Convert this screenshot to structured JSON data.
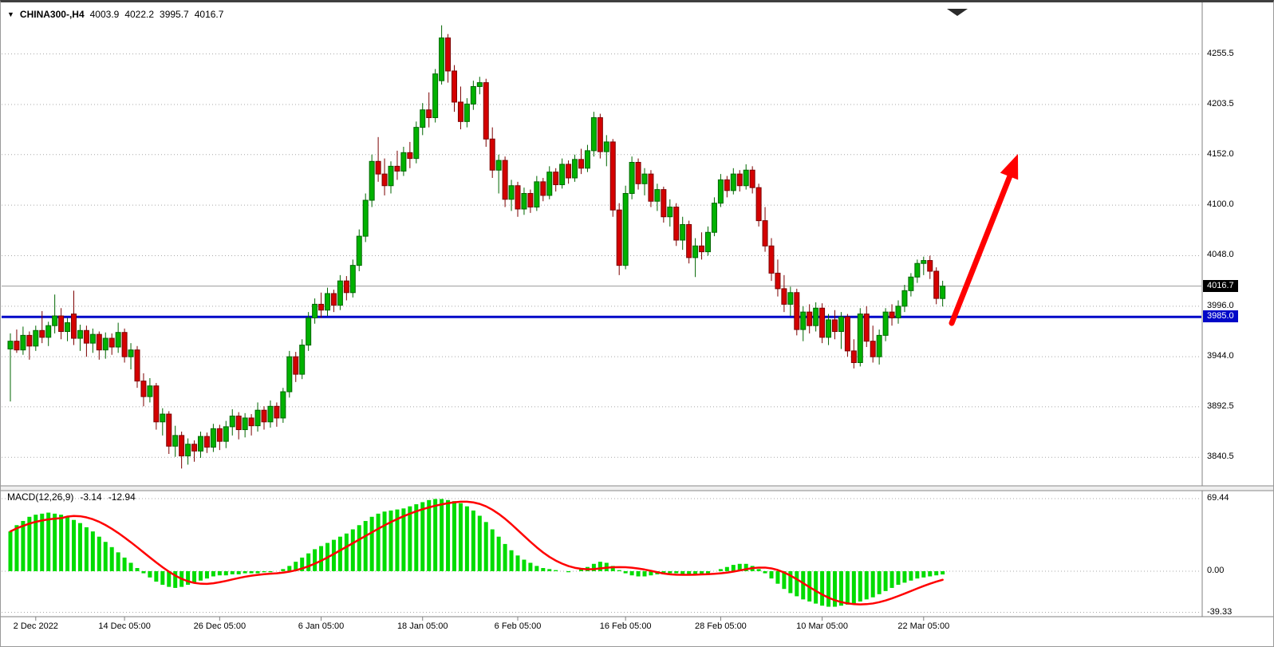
{
  "header": {
    "dropdown_icon": "▼",
    "symbol": "CHINA300-,H4",
    "open": "4003.9",
    "high": "4022.2",
    "low": "3995.7",
    "close": "4016.7"
  },
  "price_axis": {
    "current_price": "4016.7",
    "support_price": "3985.0"
  },
  "macd_panel": {
    "title": "MACD(12,26,9)",
    "main_value": "-3.14",
    "signal_value": "-12.94"
  },
  "colors": {
    "bull": "#00b200",
    "bull_border": "#006600",
    "bear": "#d40000",
    "bear_border": "#7c0000",
    "macd_hist": "#00dc00",
    "macd_signal": "#ff0000",
    "support_line": "#0008c8",
    "trend_arrow": "#ff0000",
    "grid": "#a8a8a8",
    "current_price_line": "#9a9a9a"
  },
  "chart_data": [
    {
      "type": "candlestick",
      "title": "CHINA300-,H4",
      "ylim": [
        3812,
        4302
      ],
      "y_ticks": [
        4255.5,
        4203.5,
        4152.0,
        4100.0,
        4048.0,
        3996.0,
        3944.0,
        3892.5,
        3840.5
      ],
      "last_price": 4016.7,
      "annotations": [
        {
          "type": "hline",
          "value": 3985.0,
          "color": "#0008c8"
        },
        {
          "type": "arrow",
          "direction": "up",
          "color": "#ff0000"
        }
      ],
      "x_tick_labels": [
        {
          "label": "2 Dec 2022",
          "index": 4
        },
        {
          "label": "14 Dec 05:00",
          "index": 18
        },
        {
          "label": "26 Dec 05:00",
          "index": 33
        },
        {
          "label": "6 Jan 05:00",
          "index": 49
        },
        {
          "label": "18 Jan 05:00",
          "index": 65
        },
        {
          "label": "6 Feb 05:00",
          "index": 80
        },
        {
          "label": "16 Feb 05:00",
          "index": 97
        },
        {
          "label": "28 Feb 05:00",
          "index": 112
        },
        {
          "label": "10 Mar 05:00",
          "index": 128
        },
        {
          "label": "22 Mar 05:00",
          "index": 144
        }
      ],
      "ohlc": [
        [
          3952,
          3968,
          3898,
          3960
        ],
        [
          3960,
          3972,
          3948,
          3951
        ],
        [
          3951,
          3975,
          3946,
          3966
        ],
        [
          3966,
          3970,
          3941,
          3955
        ],
        [
          3955,
          3976,
          3950,
          3971
        ],
        [
          3971,
          3991,
          3958,
          3964
        ],
        [
          3964,
          3980,
          3955,
          3976
        ],
        [
          3976,
          4008,
          3968,
          3986
        ],
        [
          3986,
          3994,
          3962,
          3970
        ],
        [
          3970,
          3984,
          3960,
          3979
        ],
        [
          3988,
          4012,
          3956,
          3963
        ],
        [
          3963,
          3977,
          3950,
          3971
        ],
        [
          3971,
          3976,
          3944,
          3958
        ],
        [
          3958,
          3973,
          3948,
          3967
        ],
        [
          3967,
          3970,
          3941,
          3951
        ],
        [
          3951,
          3969,
          3942,
          3963
        ],
        [
          3963,
          3968,
          3946,
          3954
        ],
        [
          3954,
          3979,
          3948,
          3969
        ],
        [
          3969,
          3973,
          3938,
          3944
        ],
        [
          3944,
          3958,
          3931,
          3951
        ],
        [
          3951,
          3955,
          3912,
          3919
        ],
        [
          3919,
          3927,
          3893,
          3903
        ],
        [
          3903,
          3922,
          3897,
          3914
        ],
        [
          3914,
          3917,
          3869,
          3877
        ],
        [
          3877,
          3891,
          3863,
          3885
        ],
        [
          3885,
          3888,
          3844,
          3852
        ],
        [
          3852,
          3873,
          3841,
          3863
        ],
        [
          3863,
          3867,
          3829,
          3842
        ],
        [
          3842,
          3860,
          3833,
          3854
        ],
        [
          3854,
          3858,
          3836,
          3847
        ],
        [
          3847,
          3867,
          3840,
          3862
        ],
        [
          3862,
          3866,
          3845,
          3851
        ],
        [
          3851,
          3875,
          3846,
          3870
        ],
        [
          3870,
          3874,
          3848,
          3857
        ],
        [
          3857,
          3878,
          3850,
          3872
        ],
        [
          3872,
          3890,
          3863,
          3883
        ],
        [
          3883,
          3887,
          3859,
          3869
        ],
        [
          3869,
          3886,
          3861,
          3881
        ],
        [
          3881,
          3885,
          3863,
          3873
        ],
        [
          3873,
          3897,
          3867,
          3889
        ],
        [
          3889,
          3893,
          3869,
          3877
        ],
        [
          3877,
          3899,
          3871,
          3893
        ],
        [
          3893,
          3897,
          3872,
          3881
        ],
        [
          3881,
          3912,
          3876,
          3908
        ],
        [
          3908,
          3950,
          3902,
          3944
        ],
        [
          3944,
          3949,
          3918,
          3926
        ],
        [
          3926,
          3962,
          3921,
          3956
        ],
        [
          3956,
          3990,
          3950,
          3984
        ],
        [
          3984,
          4004,
          3978,
          3998
        ],
        [
          3998,
          4010,
          3984,
          3992
        ],
        [
          3992,
          4015,
          3986,
          4009
        ],
        [
          4009,
          4013,
          3990,
          3997
        ],
        [
          3997,
          4028,
          3992,
          4022
        ],
        [
          4022,
          4027,
          4002,
          4010
        ],
        [
          4010,
          4044,
          4005,
          4038
        ],
        [
          4038,
          4075,
          4032,
          4068
        ],
        [
          4068,
          4112,
          4062,
          4105
        ],
        [
          4105,
          4152,
          4098,
          4145
        ],
        [
          4145,
          4170,
          4124,
          4132
        ],
        [
          4132,
          4148,
          4110,
          4120
        ],
        [
          4120,
          4145,
          4112,
          4140
        ],
        [
          4140,
          4156,
          4126,
          4135
        ],
        [
          4135,
          4160,
          4130,
          4154
        ],
        [
          4154,
          4165,
          4138,
          4148
        ],
        [
          4148,
          4186,
          4143,
          4180
        ],
        [
          4180,
          4205,
          4172,
          4198
        ],
        [
          4198,
          4216,
          4180,
          4190
        ],
        [
          4190,
          4240,
          4185,
          4235
        ],
        [
          4228,
          4285,
          4224,
          4272
        ],
        [
          4272,
          4276,
          4226,
          4238
        ],
        [
          4238,
          4244,
          4196,
          4206
        ],
        [
          4206,
          4222,
          4178,
          4186
        ],
        [
          4186,
          4210,
          4180,
          4204
        ],
        [
          4204,
          4228,
          4198,
          4222
        ],
        [
          4222,
          4232,
          4214,
          4226
        ],
        [
          4226,
          4230,
          4160,
          4168
        ],
        [
          4168,
          4180,
          4128,
          4136
        ],
        [
          4136,
          4152,
          4112,
          4146
        ],
        [
          4146,
          4150,
          4098,
          4106
        ],
        [
          4106,
          4126,
          4094,
          4120
        ],
        [
          4120,
          4124,
          4088,
          4096
        ],
        [
          4096,
          4118,
          4090,
          4112
        ],
        [
          4112,
          4116,
          4092,
          4098
        ],
        [
          4098,
          4130,
          4094,
          4124
        ],
        [
          4124,
          4128,
          4104,
          4110
        ],
        [
          4110,
          4140,
          4106,
          4134
        ],
        [
          4134,
          4138,
          4114,
          4121
        ],
        [
          4121,
          4148,
          4117,
          4142
        ],
        [
          4142,
          4146,
          4122,
          4128
        ],
        [
          4128,
          4152,
          4124,
          4147
        ],
        [
          4147,
          4158,
          4132,
          4138
        ],
        [
          4138,
          4162,
          4134,
          4156
        ],
        [
          4156,
          4196,
          4150,
          4190
        ],
        [
          4190,
          4194,
          4148,
          4155
        ],
        [
          4155,
          4172,
          4140,
          4165
        ],
        [
          4165,
          4168,
          4088,
          4095
        ],
        [
          4095,
          4102,
          4028,
          4038
        ],
        [
          4038,
          4120,
          4034,
          4112
        ],
        [
          4112,
          4150,
          4106,
          4144
        ],
        [
          4144,
          4148,
          4116,
          4122
        ],
        [
          4122,
          4138,
          4110,
          4132
        ],
        [
          4132,
          4136,
          4098,
          4104
        ],
        [
          4104,
          4122,
          4094,
          4116
        ],
        [
          4116,
          4119,
          4082,
          4088
        ],
        [
          4088,
          4106,
          4078,
          4098
        ],
        [
          4098,
          4102,
          4058,
          4064
        ],
        [
          4064,
          4088,
          4054,
          4080
        ],
        [
          4080,
          4084,
          4040,
          4046
        ],
        [
          4046,
          4066,
          4026,
          4058
        ],
        [
          4058,
          4072,
          4044,
          4052
        ],
        [
          4052,
          4078,
          4048,
          4072
        ],
        [
          4072,
          4108,
          4068,
          4102
        ],
        [
          4102,
          4132,
          4098,
          4126
        ],
        [
          4126,
          4130,
          4108,
          4115
        ],
        [
          4115,
          4138,
          4111,
          4132
        ],
        [
          4132,
          4136,
          4114,
          4120
        ],
        [
          4120,
          4142,
          4116,
          4136
        ],
        [
          4136,
          4140,
          4112,
          4118
        ],
        [
          4118,
          4122,
          4078,
          4084
        ],
        [
          4084,
          4098,
          4052,
          4058
        ],
        [
          4058,
          4066,
          4022,
          4030
        ],
        [
          4030,
          4044,
          4006,
          4014
        ],
        [
          4014,
          4028,
          3990,
          3998
        ],
        [
          3998,
          4016,
          3986,
          4010
        ],
        [
          4010,
          4014,
          3966,
          3972
        ],
        [
          3972,
          3996,
          3960,
          3990
        ],
        [
          3990,
          3998,
          3968,
          3976
        ],
        [
          3976,
          4000,
          3970,
          3994
        ],
        [
          3994,
          3999,
          3958,
          3964
        ],
        [
          3964,
          3988,
          3956,
          3982
        ],
        [
          3982,
          3992,
          3962,
          3970
        ],
        [
          3970,
          3990,
          3952,
          3985
        ],
        [
          3985,
          3988,
          3944,
          3950
        ],
        [
          3950,
          3962,
          3932,
          3938
        ],
        [
          3938,
          3994,
          3934,
          3988
        ],
        [
          3988,
          3996,
          3954,
          3960
        ],
        [
          3960,
          3976,
          3938,
          3944
        ],
        [
          3944,
          3972,
          3936,
          3966
        ],
        [
          3966,
          3994,
          3960,
          3990
        ],
        [
          3990,
          3998,
          3976,
          3984
        ],
        [
          3984,
          4002,
          3978,
          3996
        ],
        [
          3996,
          4018,
          3990,
          4012
        ],
        [
          4012,
          4030,
          4006,
          4026
        ],
        [
          4026,
          4044,
          4020,
          4040
        ],
        [
          4040,
          4047,
          4028,
          4043
        ],
        [
          4043,
          4048,
          4024,
          4032
        ],
        [
          4032,
          4036,
          3998,
          4004
        ],
        [
          4003.9,
          4022.2,
          3995.7,
          4016.7
        ]
      ]
    },
    {
      "type": "bar",
      "title": "MACD(12,26,9)",
      "ylim": [
        -42,
        75.5
      ],
      "y_ticks": [
        69.44,
        0,
        -39.33
      ],
      "current_main": -3.14,
      "current_signal": -12.94,
      "signal_ma_period": 9,
      "values": [
        38,
        44,
        48,
        52,
        54,
        55,
        56,
        55,
        54,
        52,
        49,
        46,
        42,
        38,
        33,
        28,
        23,
        18,
        13,
        8,
        3,
        -2,
        -6,
        -10,
        -13,
        -15,
        -16,
        -15,
        -13,
        -11,
        -9,
        -7,
        -5,
        -4,
        -4,
        -3,
        -3,
        -2,
        -2,
        -2,
        -1,
        -1,
        0,
        2,
        5,
        9,
        13,
        17,
        21,
        24,
        27,
        30,
        33,
        36,
        40,
        44,
        48,
        52,
        55,
        57,
        58,
        59,
        60,
        62,
        64,
        66,
        68,
        69,
        69,
        68,
        67,
        65,
        62,
        58,
        53,
        47,
        40,
        33,
        26,
        20,
        15,
        11,
        8,
        5,
        3,
        2,
        1,
        0,
        -1,
        0,
        2,
        4,
        7,
        9,
        8,
        5,
        1,
        -2,
        -4,
        -5,
        -5,
        -4,
        -3,
        -3,
        -2,
        -2,
        -3,
        -4,
        -4,
        -3,
        -2,
        0,
        2,
        4,
        6,
        7,
        7,
        5,
        2,
        -2,
        -7,
        -12,
        -17,
        -21,
        -24,
        -27,
        -29,
        -31,
        -33,
        -34,
        -34,
        -33,
        -32,
        -31,
        -29,
        -27,
        -25,
        -22,
        -19,
        -16,
        -13,
        -11,
        -9,
        -7,
        -6,
        -5,
        -4,
        -3.14
      ]
    }
  ]
}
